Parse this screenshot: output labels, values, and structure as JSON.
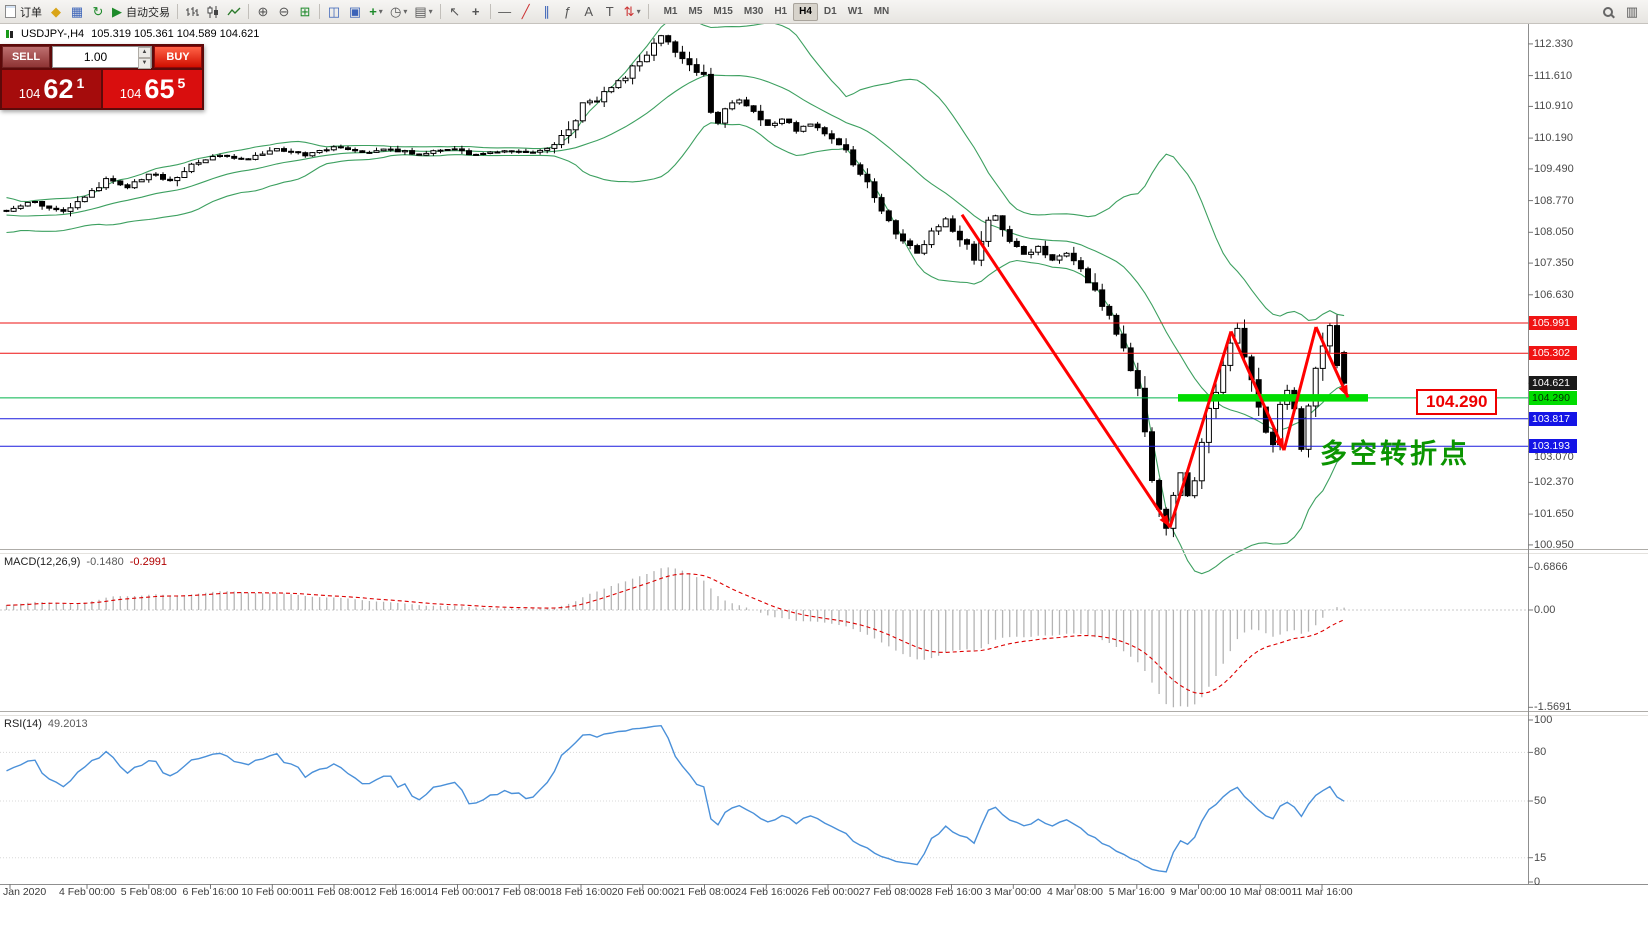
{
  "toolbar": {
    "new_order_label": "订单",
    "autotrading_label": "自动交易",
    "timeframes": [
      "M1",
      "M5",
      "M15",
      "M30",
      "H1",
      "H4",
      "D1",
      "W1",
      "MN"
    ],
    "active_timeframe": "H4"
  },
  "icons": {
    "metaeditor": "◆",
    "terminal": "▦",
    "refresh": "↻",
    "autotrading_play": "▶",
    "zoom_in": "⊕",
    "zoom_out": "⊖",
    "grid": "⊞",
    "window_tile": "◫",
    "window_cascade": "▣",
    "indicator_add": "+",
    "clock": "◷",
    "template": "▤",
    "dropdown": "▾",
    "cursor": "↖",
    "crosshair": "+",
    "hline": "—",
    "trendline": "╱",
    "channel": "∥",
    "fibonacci": "ƒ",
    "text": "A",
    "label": "T",
    "arrows": "⇅",
    "panel": "▥"
  },
  "chart_header": {
    "symbol_title": "USDJPY-,H4",
    "ohlc_text": "105.319 105.361 104.589 104.621"
  },
  "trade_panel": {
    "sell_label": "SELL",
    "buy_label": "BUY",
    "lot_value": "1.00",
    "sell_price": {
      "figure": "104",
      "pips": "62",
      "pipette": "1"
    },
    "buy_price": {
      "figure": "104",
      "pips": "65",
      "pipette": "5"
    }
  },
  "price_scale": {
    "ticks": [
      "112.330",
      "111.610",
      "110.910",
      "110.190",
      "109.490",
      "108.770",
      "108.050",
      "107.350",
      "106.630",
      "103.070",
      "102.370",
      "101.650",
      "100.950"
    ],
    "highlights": [
      {
        "label": "105.991",
        "type": "resistance-line",
        "bg": "#f01414",
        "fg": "#ffffff"
      },
      {
        "label": "105.302",
        "type": "resistance-line",
        "bg": "#f01414",
        "fg": "#ffffff"
      },
      {
        "label": "104.621",
        "type": "last-price",
        "bg": "#1a1a1a",
        "fg": "#ffffff"
      },
      {
        "label": "104.290",
        "type": "key-level",
        "bg": "#00dc00",
        "fg": "#003000"
      },
      {
        "label": "103.817",
        "type": "support-line",
        "bg": "#1414e6",
        "fg": "#ffffff"
      },
      {
        "label": "103.193",
        "type": "support-line",
        "bg": "#1414e6",
        "fg": "#ffffff"
      }
    ]
  },
  "macd_panel": {
    "name": "MACD(12,26,9)",
    "value_main": "-0.1480",
    "value_signal": "-0.2991",
    "scale": [
      "0.6866",
      "0.00",
      "-1.5691"
    ]
  },
  "rsi_panel": {
    "name": "RSI(14)",
    "value": "49.2013",
    "scale": [
      "100",
      "80",
      "50",
      "15",
      "0"
    ],
    "levels": [
      80,
      50,
      15
    ]
  },
  "time_axis": {
    "labels": [
      "Jan 2020",
      "4 Feb 00:00",
      "5 Feb 08:00",
      "6 Feb 16:00",
      "10 Feb 00:00",
      "11 Feb 08:00",
      "12 Feb 16:00",
      "14 Feb 00:00",
      "17 Feb 08:00",
      "18 Feb 16:00",
      "20 Feb 00:00",
      "21 Feb 08:00",
      "24 Feb 16:00",
      "26 Feb 00:00",
      "27 Feb 08:00",
      "28 Feb 16:00",
      "3 Mar 00:00",
      "4 Mar 08:00",
      "5 Mar 16:00",
      "9 Mar 00:00",
      "10 Mar 08:00",
      "11 Mar 16:00"
    ]
  },
  "annotations": {
    "level_callout": "104.290",
    "cn_note": "多空转折点",
    "green_segment": {
      "price": 104.29,
      "x_from": 1178,
      "x_to": 1368,
      "color": "#00dc00"
    },
    "trend_arrows": {
      "color": "#ff0000",
      "points": [
        [
          962,
          108.45
        ],
        [
          1170,
          101.35
        ],
        [
          1231,
          105.8
        ],
        [
          1284,
          103.1
        ],
        [
          1316,
          105.9
        ],
        [
          1348,
          104.3
        ]
      ],
      "arrowhead_segments": [
        0,
        2,
        4
      ]
    }
  },
  "chart_data": {
    "type": "candlestick",
    "symbol": "USDJPY-",
    "timeframe": "H4",
    "last_quote": {
      "open": 105.319,
      "high": 105.361,
      "low": 104.589,
      "close": 104.621
    },
    "bid": "104.621",
    "ask": "104.655",
    "y_range": [
      100.93,
      112.69
    ],
    "n_candles": 189,
    "price_path": [
      [
        0,
        108.55
      ],
      [
        4,
        108.75
      ],
      [
        8,
        108.5
      ],
      [
        12,
        108.95
      ],
      [
        14,
        109.25
      ],
      [
        17,
        109.05
      ],
      [
        20,
        109.4
      ],
      [
        23,
        109.2
      ],
      [
        26,
        109.6
      ],
      [
        30,
        109.8
      ],
      [
        34,
        109.7
      ],
      [
        38,
        109.95
      ],
      [
        42,
        109.8
      ],
      [
        46,
        110.0
      ],
      [
        50,
        109.85
      ],
      [
        54,
        109.95
      ],
      [
        58,
        109.8
      ],
      [
        62,
        109.95
      ],
      [
        66,
        109.8
      ],
      [
        70,
        109.9
      ],
      [
        74,
        109.85
      ],
      [
        77,
        110.0
      ],
      [
        79,
        110.35
      ],
      [
        81,
        110.95
      ],
      [
        83,
        111.05
      ],
      [
        85,
        111.35
      ],
      [
        87,
        111.55
      ],
      [
        89,
        111.95
      ],
      [
        91,
        112.3
      ],
      [
        92,
        112.5
      ],
      [
        94,
        112.2
      ],
      [
        96,
        111.9
      ],
      [
        98,
        111.5
      ],
      [
        99,
        110.75
      ],
      [
        100,
        110.55
      ],
      [
        101,
        110.85
      ],
      [
        103,
        111.05
      ],
      [
        105,
        110.85
      ],
      [
        107,
        110.45
      ],
      [
        109,
        110.65
      ],
      [
        111,
        110.35
      ],
      [
        113,
        110.5
      ],
      [
        116,
        110.15
      ],
      [
        118,
        109.9
      ],
      [
        120,
        109.4
      ],
      [
        122,
        108.8
      ],
      [
        124,
        108.35
      ],
      [
        126,
        107.85
      ],
      [
        128,
        107.6
      ],
      [
        130,
        108.1
      ],
      [
        132,
        108.35
      ],
      [
        134,
        107.95
      ],
      [
        136,
        107.45
      ],
      [
        138,
        108.25
      ],
      [
        139,
        108.45
      ],
      [
        141,
        107.85
      ],
      [
        143,
        107.55
      ],
      [
        145,
        107.75
      ],
      [
        147,
        107.45
      ],
      [
        149,
        107.6
      ],
      [
        151,
        107.15
      ],
      [
        153,
        106.65
      ],
      [
        155,
        106.15
      ],
      [
        156,
        105.7
      ],
      [
        157,
        105.45
      ],
      [
        158,
        105.0
      ],
      [
        159,
        104.45
      ],
      [
        160,
        103.5
      ],
      [
        161,
        102.5
      ],
      [
        162,
        101.7
      ],
      [
        163,
        101.3
      ],
      [
        164,
        102.2
      ],
      [
        165,
        102.6
      ],
      [
        166,
        102.05
      ],
      [
        167,
        102.45
      ],
      [
        168,
        103.3
      ],
      [
        169,
        104.0
      ],
      [
        170,
        104.55
      ],
      [
        171,
        105.1
      ],
      [
        172,
        105.55
      ],
      [
        173,
        105.85
      ],
      [
        174,
        105.15
      ],
      [
        175,
        104.65
      ],
      [
        176,
        104.05
      ],
      [
        177,
        103.55
      ],
      [
        178,
        103.2
      ],
      [
        179,
        104.25
      ],
      [
        180,
        104.45
      ],
      [
        181,
        103.95
      ],
      [
        182,
        103.1
      ],
      [
        183,
        104.05
      ],
      [
        184,
        104.85
      ],
      [
        185,
        105.5
      ],
      [
        186,
        105.95
      ],
      [
        187,
        105.05
      ],
      [
        188,
        104.62
      ]
    ],
    "bollinger": {
      "period": 20,
      "deviation": 2,
      "color": "#3da060"
    },
    "levels": [
      {
        "price": 105.991,
        "color": "#ee1111"
      },
      {
        "price": 105.302,
        "color": "#ee1111"
      },
      {
        "price": 104.29,
        "color": "#00b44b"
      },
      {
        "price": 103.817,
        "color": "#1a1add"
      },
      {
        "price": 103.193,
        "color": "#1a1add"
      }
    ],
    "macd": {
      "fast": 12,
      "slow": 26,
      "signal": 9,
      "current_main": -0.148,
      "current_signal": -0.2991,
      "range": [
        -1.5691,
        0.6866
      ]
    },
    "rsi": {
      "period": 14,
      "current": 49.2013
    }
  }
}
